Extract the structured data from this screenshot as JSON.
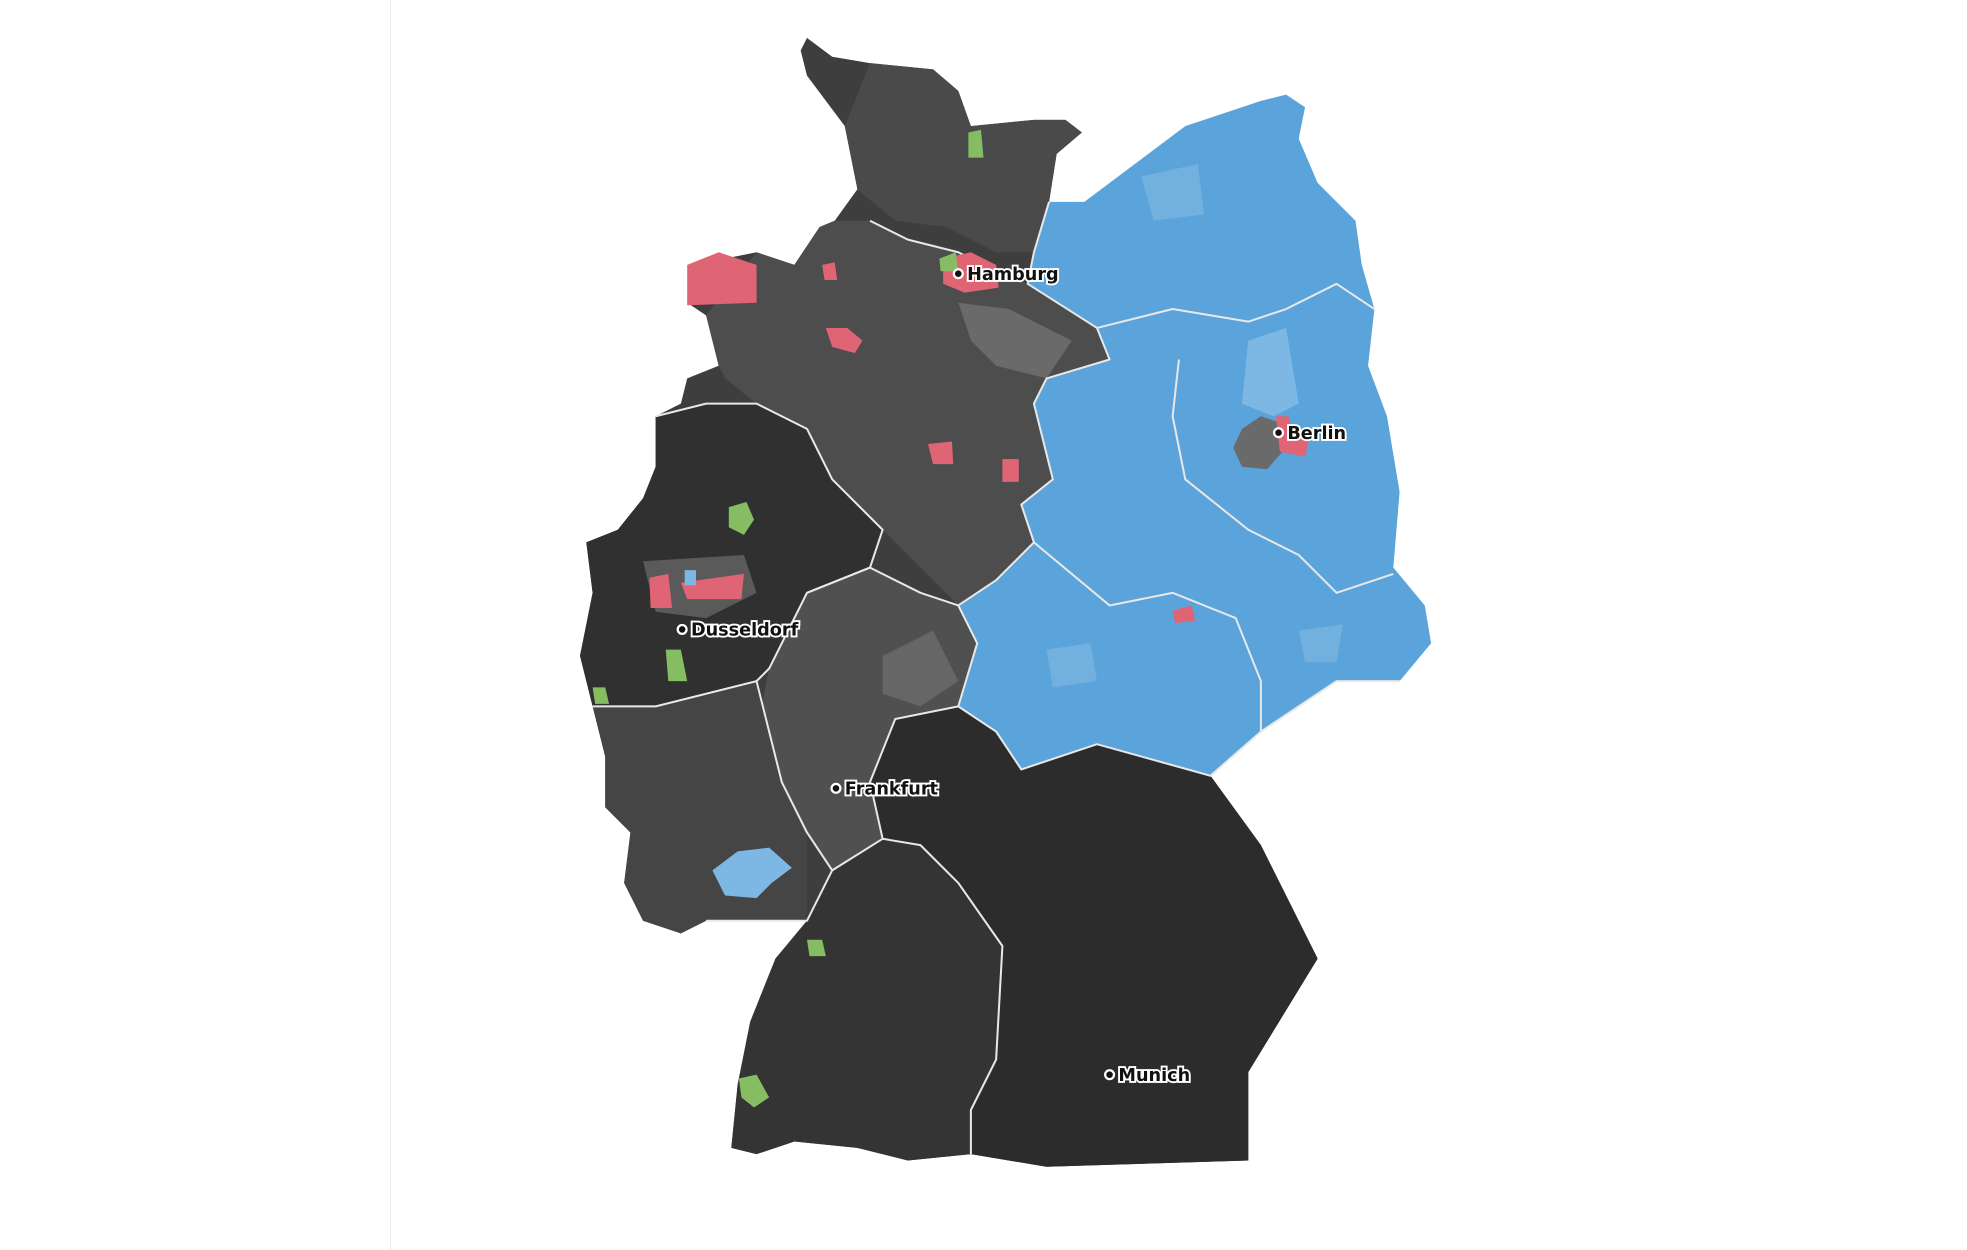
{
  "map": {
    "cities": [
      {
        "name": "Hamburg"
      },
      {
        "name": "Berlin"
      },
      {
        "name": "Dusseldorf"
      },
      {
        "name": "Frankfurt"
      },
      {
        "name": "Munich"
      }
    ],
    "colors": {
      "dark_grey_region": "#3c3c3c",
      "darkest_region": "#2c2c2c",
      "medium_grey_region": "#555555",
      "light_grey_region": "#6e6e6e",
      "blue_region": "#5aa3db",
      "light_blue_region": "#7db8e4",
      "red_region": "#e06574",
      "green_region": "#86bd63",
      "state_border": "#e8e8e8",
      "background": "#ffffff"
    }
  }
}
